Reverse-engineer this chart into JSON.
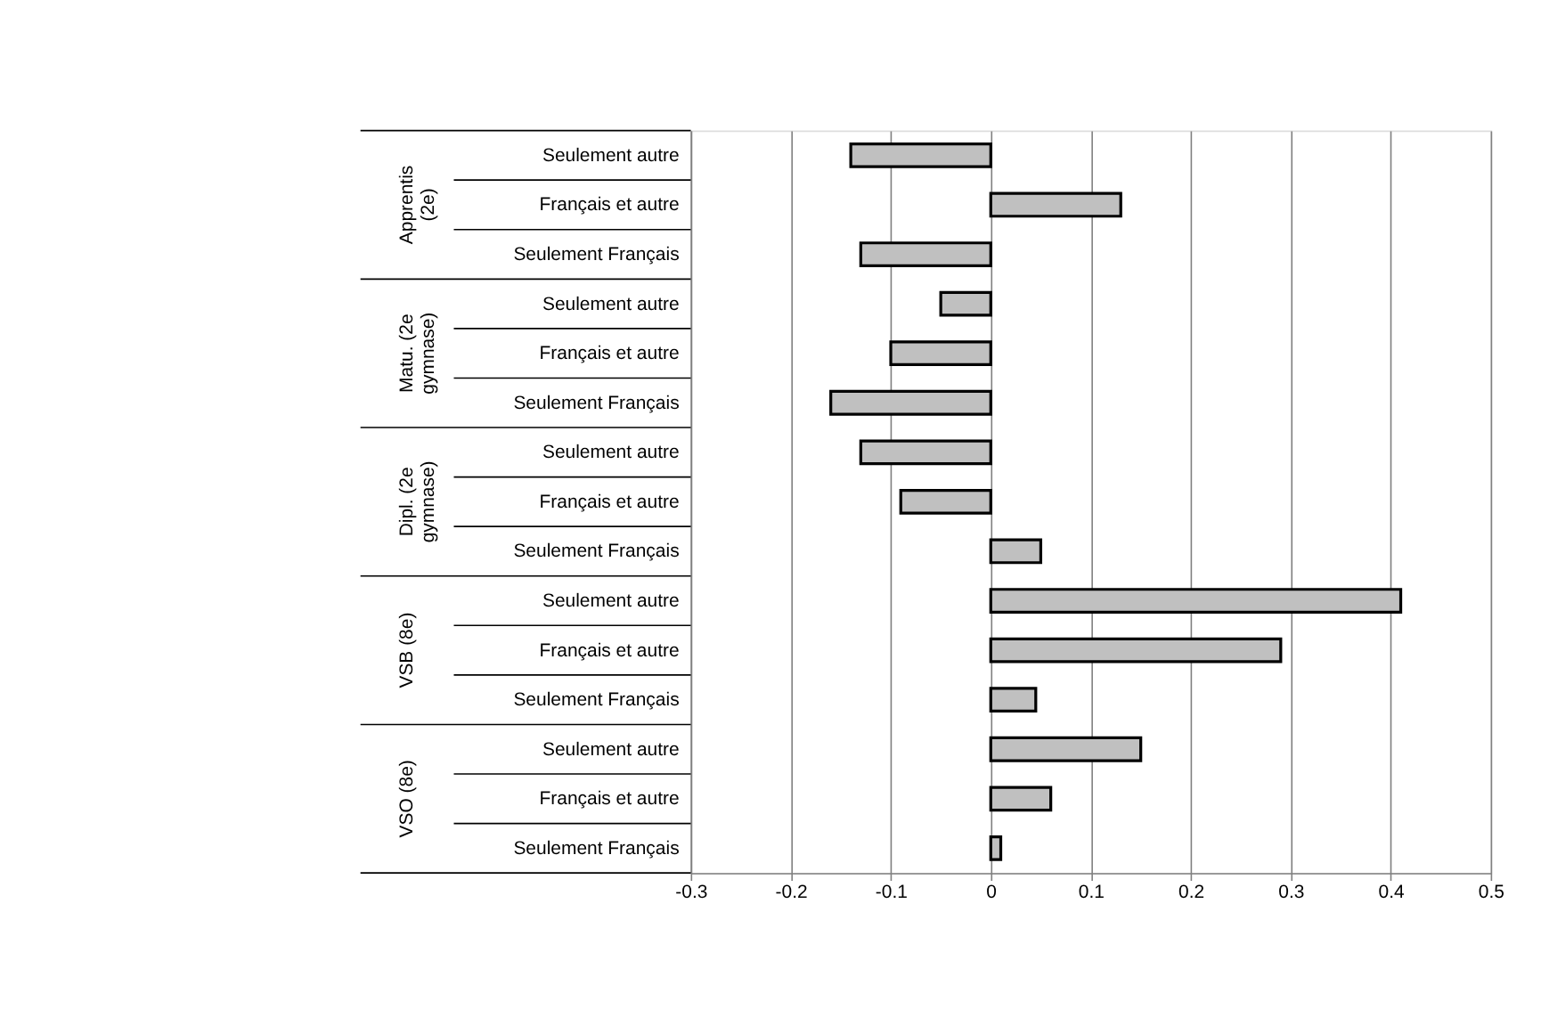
{
  "chart_data": {
    "type": "bar",
    "orientation": "horizontal",
    "categories": [
      "Seulement autre",
      "Français et autre",
      "Seulement Français",
      "Seulement autre",
      "Français et autre",
      "Seulement Français",
      "Seulement autre",
      "Français et autre",
      "Seulement Français",
      "Seulement autre",
      "Français et autre",
      "Seulement Français",
      "Seulement autre",
      "Français et autre",
      "Seulement Français"
    ],
    "values": [
      -0.14,
      0.13,
      -0.13,
      -0.05,
      -0.1,
      -0.16,
      -0.13,
      -0.09,
      0.05,
      0.41,
      0.29,
      0.045,
      0.15,
      0.06,
      0.01
    ],
    "color": "#c0c0c0",
    "xlim": [
      -0.3,
      0.5
    ],
    "xticks": [
      -0.3,
      -0.2,
      -0.1,
      0,
      0.1,
      0.2,
      0.3,
      0.4,
      0.5
    ],
    "grid": "x",
    "annotations": [
      "Apprentis (2e)",
      "Matu. (2e gymnase)",
      "Dipl. (2e gymnase)",
      "VSB (8e)",
      "VSO (8e)"
    ]
  }
}
